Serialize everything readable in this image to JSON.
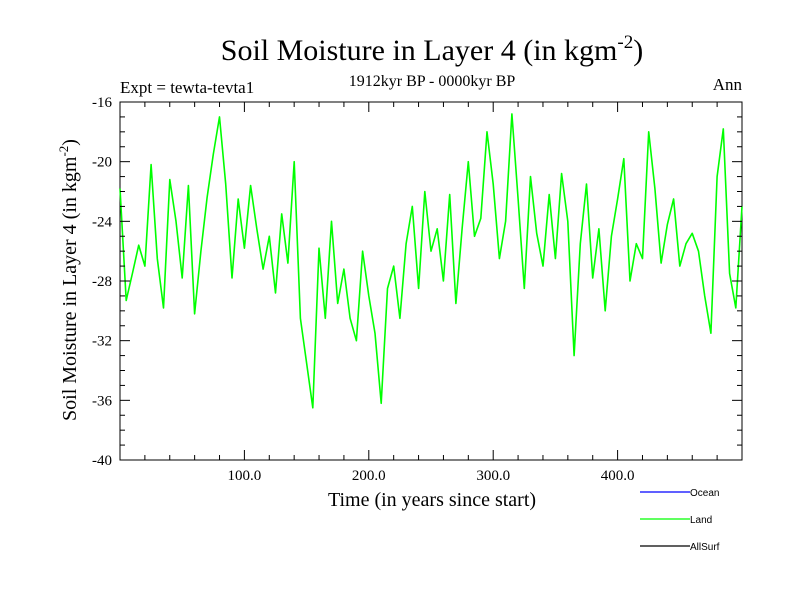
{
  "chart_data": {
    "type": "line",
    "title": "Soil Moisture in Layer 4 (in kgm",
    "title_sup": "-2",
    "title_tail": ")",
    "subtitle": "1912kyr BP - 0000kyr BP",
    "left_label": "Expt = tewta-tevta1",
    "right_label": "Ann",
    "xlabel": "Time (in years since start)",
    "ylabel": "Soil Moisture in Layer 4 (in kgm",
    "ylabel_sup": "-2",
    "ylabel_tail": ")",
    "xlim": [
      0,
      500
    ],
    "ylim": [
      -40,
      -16
    ],
    "xticks": [
      100,
      200,
      300,
      400
    ],
    "xtick_labels": [
      "100.0",
      "200.0",
      "300.0",
      "400.0"
    ],
    "yticks": [
      -16,
      -20,
      -24,
      -28,
      -32,
      -36,
      -40
    ],
    "ytick_labels": [
      "-16",
      "-20",
      "-24",
      "-28",
      "-32",
      "-36",
      "-40"
    ],
    "legend": [
      {
        "name": "Ocean",
        "color": "#0000ff"
      },
      {
        "name": "Land",
        "color": "#00ff00"
      },
      {
        "name": "AllSurf",
        "color": "#000000"
      }
    ],
    "series": [
      {
        "name": "Land",
        "color": "#00ff00",
        "x": [
          0,
          5,
          10,
          15,
          20,
          25,
          30,
          35,
          40,
          45,
          50,
          55,
          60,
          65,
          70,
          75,
          80,
          85,
          90,
          95,
          100,
          105,
          110,
          115,
          120,
          125,
          130,
          135,
          140,
          145,
          150,
          155,
          160,
          165,
          170,
          175,
          180,
          185,
          190,
          195,
          200,
          205,
          210,
          215,
          220,
          225,
          230,
          235,
          240,
          245,
          250,
          255,
          260,
          265,
          270,
          275,
          280,
          285,
          290,
          295,
          300,
          305,
          310,
          315,
          320,
          325,
          330,
          335,
          340,
          345,
          350,
          355,
          360,
          365,
          370,
          375,
          380,
          385,
          390,
          395,
          400,
          405,
          410,
          415,
          420,
          425,
          430,
          435,
          440,
          445,
          450,
          455,
          460,
          465,
          470,
          475,
          480,
          485,
          490,
          495,
          500
        ],
        "values": [
          -21.8,
          -29.3,
          -27.5,
          -25.6,
          -27.0,
          -20.2,
          -26.5,
          -29.8,
          -21.2,
          -24.0,
          -27.8,
          -21.6,
          -30.2,
          -26.0,
          -22.4,
          -19.5,
          -17.0,
          -21.5,
          -27.8,
          -22.5,
          -25.8,
          -21.6,
          -24.5,
          -27.2,
          -25.0,
          -28.8,
          -23.5,
          -26.8,
          -20.0,
          -30.5,
          -33.5,
          -36.5,
          -25.8,
          -30.5,
          -24.0,
          -29.5,
          -27.2,
          -30.5,
          -32.0,
          -26.0,
          -29.0,
          -31.5,
          -36.2,
          -28.5,
          -27.0,
          -30.5,
          -25.5,
          -23.0,
          -28.5,
          -22.0,
          -26.0,
          -24.5,
          -28.0,
          -22.2,
          -29.5,
          -24.5,
          -20.0,
          -25.0,
          -23.8,
          -18.0,
          -21.5,
          -26.5,
          -24.0,
          -16.8,
          -22.5,
          -28.5,
          -21.0,
          -24.8,
          -27.0,
          -22.2,
          -26.5,
          -20.8,
          -24.0,
          -33.0,
          -25.5,
          -21.5,
          -27.8,
          -24.5,
          -30.0,
          -25.0,
          -22.5,
          -19.8,
          -28.0,
          -25.5,
          -26.5,
          -18.0,
          -21.8,
          -26.8,
          -24.2,
          -22.5,
          -27.0,
          -25.5,
          -24.8,
          -26.0,
          -29.0,
          -31.5,
          -21.0,
          -17.8,
          -27.5,
          -29.8,
          -23.0
        ]
      }
    ]
  }
}
